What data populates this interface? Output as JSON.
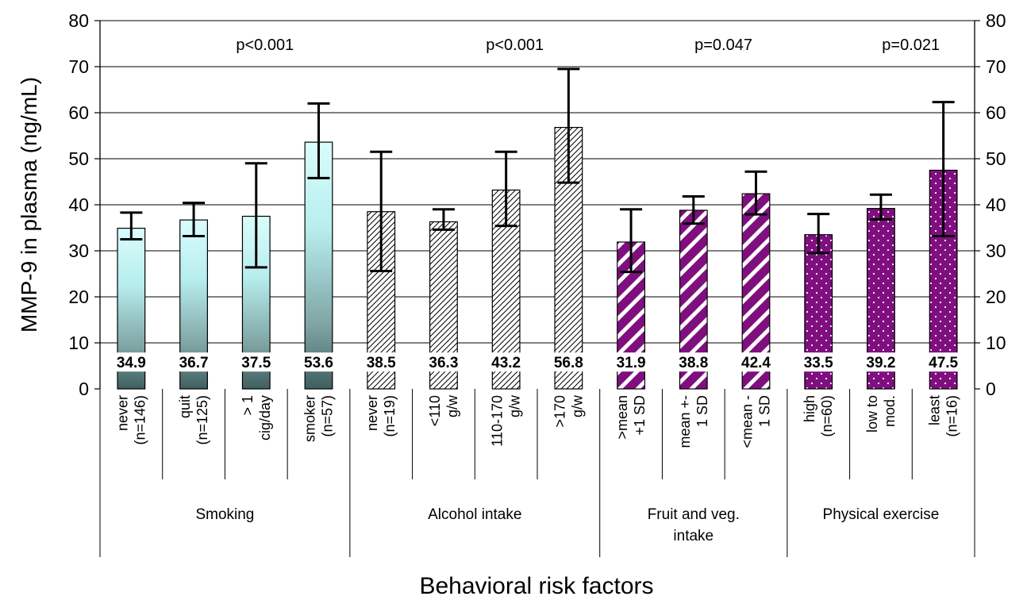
{
  "chart_data": {
    "type": "bar",
    "ylabel": "MMP-9 in plasma (ng/mL)",
    "xlabel": "Behavioral risk factors",
    "ylim": [
      0,
      80
    ],
    "yticks": [
      0,
      10,
      20,
      30,
      40,
      50,
      60,
      70,
      80
    ],
    "grid": true,
    "secondary_y_axis": true,
    "groups": [
      {
        "name": "Smoking",
        "p_value": "p<0.001",
        "fill": "gradient-cyan",
        "bars": [
          {
            "label": [
              "never",
              "(n=146)"
            ],
            "value": 34.9,
            "value_label": "34.9",
            "err_low": 32.5,
            "err_high": 38.3
          },
          {
            "label": [
              "quit",
              "(n=125)"
            ],
            "value": 36.7,
            "value_label": "36.7",
            "err_low": 33.2,
            "err_high": 40.4
          },
          {
            "label": [
              "> 1",
              "cig/day"
            ],
            "value": 37.5,
            "value_label": "37.5",
            "err_low": 26.4,
            "err_high": 49.0
          },
          {
            "label": [
              "smoker",
              "(n=57)"
            ],
            "value": 53.6,
            "value_label": "53.6",
            "err_low": 45.8,
            "err_high": 62.0
          }
        ]
      },
      {
        "name": "Alcohol intake",
        "p_value": "p<0.001",
        "fill": "hatch-fine",
        "bars": [
          {
            "label": [
              "never",
              "(n=19)"
            ],
            "value": 38.5,
            "value_label": "38.5",
            "err_low": 25.6,
            "err_high": 51.5
          },
          {
            "label": [
              "<110",
              "g/w"
            ],
            "value": 36.3,
            "value_label": "36.3",
            "err_low": 34.6,
            "err_high": 39.0
          },
          {
            "label": [
              "110-170",
              "g/w"
            ],
            "value": 43.2,
            "value_label": "43.2",
            "err_low": 35.4,
            "err_high": 51.5
          },
          {
            "label": [
              ">170",
              "g/w"
            ],
            "value": 56.8,
            "value_label": "56.8",
            "err_low": 44.8,
            "err_high": 69.5
          }
        ]
      },
      {
        "name": "Fruit and veg. intake",
        "name_lines": [
          "Fruit and veg.",
          "intake"
        ],
        "p_value": "p=0.047",
        "fill": "hatch-purple",
        "bars": [
          {
            "label": [
              ">mean",
              "+1 SD"
            ],
            "value": 31.9,
            "value_label": "31.9",
            "err_low": 25.4,
            "err_high": 39.0
          },
          {
            "label": [
              "mean +-",
              "1 SD"
            ],
            "value": 38.8,
            "value_label": "38.8",
            "err_low": 35.9,
            "err_high": 41.8
          },
          {
            "label": [
              "<mean -",
              "1 SD"
            ],
            "value": 42.4,
            "value_label": "42.4",
            "err_low": 37.9,
            "err_high": 47.2
          }
        ]
      },
      {
        "name": "Physical exercise",
        "p_value": "p=0.021",
        "fill": "dots-purple",
        "bars": [
          {
            "label": [
              "high",
              "(n=60)"
            ],
            "value": 33.5,
            "value_label": "33.5",
            "err_low": 29.5,
            "err_high": 38.0
          },
          {
            "label": [
              "low to",
              "mod."
            ],
            "value": 39.2,
            "value_label": "39.2",
            "err_low": 36.8,
            "err_high": 42.2
          },
          {
            "label": [
              "least",
              "(n=16)"
            ],
            "value": 47.5,
            "value_label": "47.5",
            "err_low": 33.2,
            "err_high": 62.3
          }
        ]
      }
    ],
    "colors": {
      "cyan_top": "#dafcfc",
      "cyan_bottom": "#3f5f5f",
      "purple": "#7f0f7f",
      "axis": "#000000",
      "grid": "#000000"
    }
  }
}
